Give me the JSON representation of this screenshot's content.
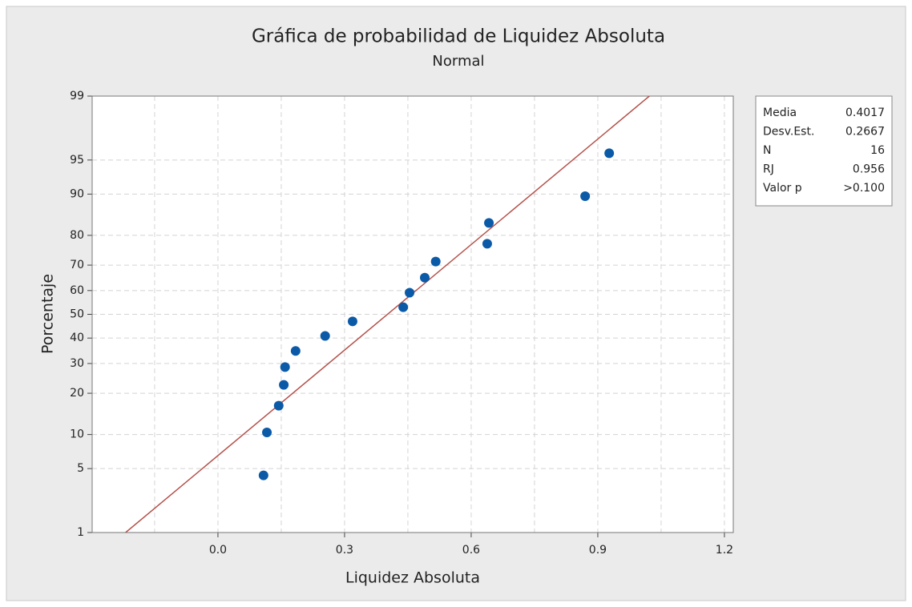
{
  "chart_data": {
    "type": "probability",
    "title": "Gráfica de probabilidad de Liquidez Absoluta",
    "subtitle": "Normal",
    "x_label": "Liquidez Absoluta",
    "y_label": "Porcentaje",
    "y_scale": "normal-probability",
    "xlim": [
      -0.298,
      1.221
    ],
    "xticks": [
      {
        "value": 0,
        "label": "0.0"
      },
      0.3,
      0.6,
      0.9,
      1.2
    ],
    "x_minor_grid": [
      -0.15,
      0.15,
      0.45,
      0.75,
      1.05
    ],
    "ylim": [
      1,
      99
    ],
    "yticks": [
      1,
      5,
      10,
      20,
      30,
      40,
      50,
      60,
      70,
      80,
      90,
      95,
      99
    ],
    "grid": true,
    "series": [
      {
        "name": "Liquidez Absoluta",
        "color": "#0b5aa8",
        "x": [
          0.108,
          0.116,
          0.144,
          0.156,
          0.159,
          0.184,
          0.254,
          0.319,
          0.439,
          0.454,
          0.49,
          0.516,
          0.638,
          0.642,
          0.87,
          0.927
        ],
        "values": [
          4.3,
          10.4,
          16.5,
          22.6,
          28.7,
          34.8,
          40.9,
          47.0,
          53.0,
          59.1,
          65.2,
          71.3,
          77.4,
          83.5,
          89.6,
          95.7
        ]
      }
    ],
    "fit_line_color": "#b5504a",
    "stats": [
      {
        "label": "Media",
        "value": 0.4017
      },
      {
        "label": "Desv.Est.",
        "value": 0.2667
      },
      {
        "label": "N",
        "value": 16
      },
      {
        "label": "RJ",
        "value": 0.956
      },
      {
        "label": "Valor p",
        "value": ">0.100"
      }
    ],
    "legend": "right"
  }
}
